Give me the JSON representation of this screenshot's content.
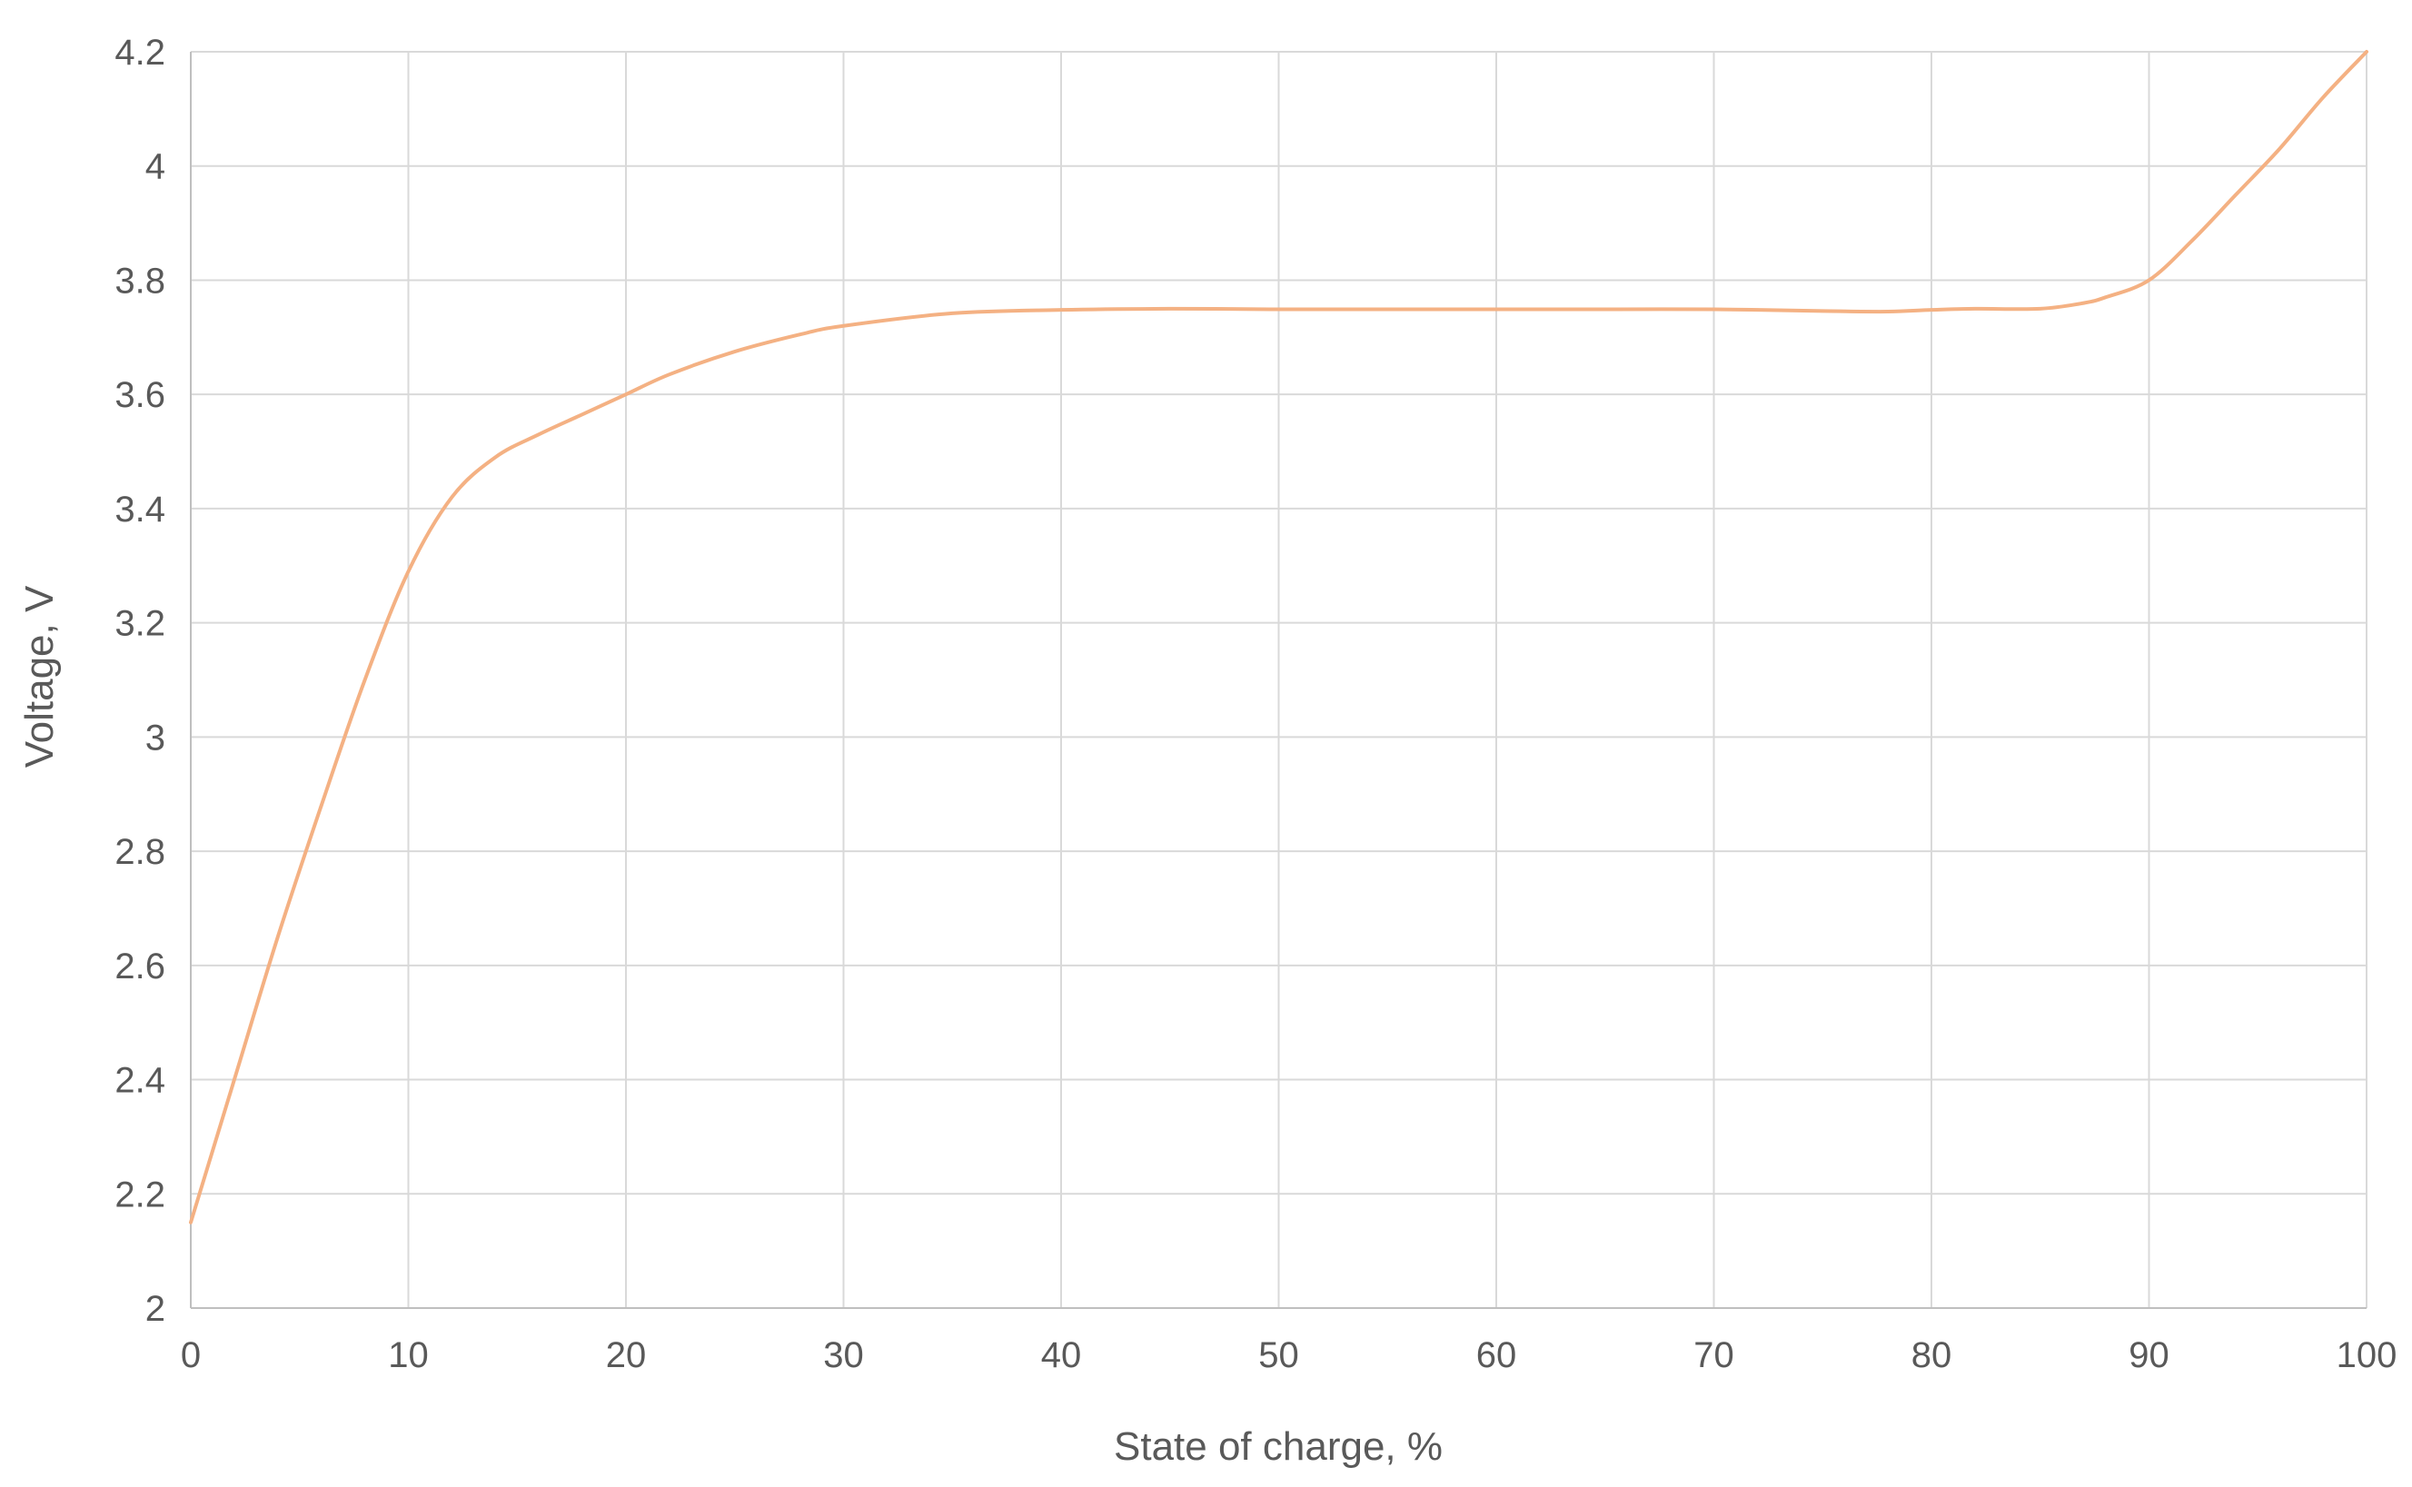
{
  "chart_data": {
    "type": "line",
    "title": "",
    "xlabel": "State of charge, %",
    "ylabel": "Voltage, V",
    "xlim": [
      0,
      100
    ],
    "ylim": [
      2,
      4.2
    ],
    "x_ticks": [
      0,
      10,
      20,
      30,
      40,
      50,
      60,
      70,
      80,
      90,
      100
    ],
    "y_ticks": [
      2,
      2.2,
      2.4,
      2.6,
      2.8,
      3,
      3.2,
      3.4,
      3.6,
      3.8,
      4,
      4.2
    ],
    "x_tick_labels": [
      "0",
      "10",
      "20",
      "30",
      "40",
      "50",
      "60",
      "70",
      "80",
      "90",
      "100"
    ],
    "y_tick_labels": [
      "2",
      "2.2",
      "2.4",
      "2.6",
      "2.8",
      "3",
      "3.2",
      "3.4",
      "3.6",
      "3.8",
      "4",
      "4.2"
    ],
    "grid": true,
    "legend": "none",
    "series": [
      {
        "color": "#f4b183",
        "x": [
          0,
          2,
          4,
          6,
          8,
          10,
          12,
          14,
          16,
          18,
          20,
          22,
          25,
          28,
          30,
          35,
          40,
          45,
          50,
          55,
          60,
          65,
          70,
          75,
          78,
          80,
          82,
          85,
          87,
          88,
          90,
          92,
          94,
          96,
          98,
          100
        ],
        "y": [
          2.15,
          2.4,
          2.65,
          2.88,
          3.1,
          3.29,
          3.42,
          3.49,
          3.53,
          3.565,
          3.6,
          3.635,
          3.675,
          3.705,
          3.72,
          3.742,
          3.748,
          3.75,
          3.749,
          3.749,
          3.749,
          3.749,
          3.749,
          3.746,
          3.745,
          3.748,
          3.75,
          3.75,
          3.76,
          3.77,
          3.8,
          3.87,
          3.95,
          4.03,
          4.12,
          4.2
        ]
      }
    ]
  }
}
